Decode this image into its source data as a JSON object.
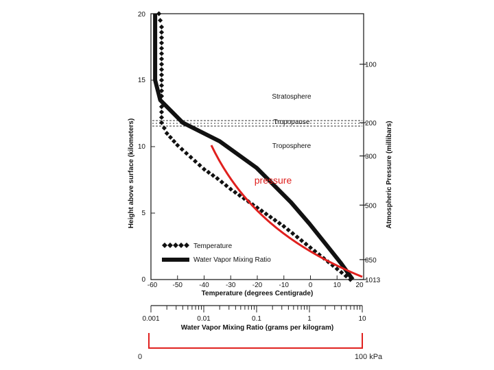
{
  "chart_data": {
    "type": "line",
    "title": "",
    "left_axis": {
      "label": "Height above surface (kilometers)",
      "range": [
        0,
        20
      ],
      "ticks": [
        "0",
        "5",
        "10",
        "15",
        "20"
      ]
    },
    "right_axis": {
      "label": "Atmospheric Pressure (millibars)",
      "tick_values": [
        1013,
        850,
        500,
        300,
        200,
        100
      ],
      "tick_heights_km": [
        0,
        1.5,
        5.6,
        9.3,
        11.8,
        16.2
      ],
      "ticks": [
        "1013",
        "850",
        "500",
        "300",
        "200",
        "100"
      ]
    },
    "temp_axis": {
      "label": "Temperature (degrees Centigrade)",
      "range": [
        -60,
        20
      ],
      "ticks": [
        "-60",
        "-50",
        "-40",
        "-30",
        "-20",
        "-10",
        "0",
        "10",
        "20"
      ]
    },
    "mixing_axis": {
      "label": "Water Vapor Mixing Ratio (grams per kilogram)",
      "range": [
        0.001,
        10
      ],
      "scale": "log",
      "ticks": [
        "0.001",
        "0.01",
        "0.1",
        "1",
        "10"
      ]
    },
    "layers": {
      "stratosphere": "Stratosphere",
      "tropopause": "Tropopause",
      "troposphere": "Troposphere",
      "tropopause_km": 11.8
    },
    "legend": {
      "temperature": "Temperature",
      "mixing": "Water Vapor Mixing Ratio"
    },
    "series": [
      {
        "name": "Temperature",
        "axis": "temperature",
        "points": [
          [
            15,
            0
          ],
          [
            10,
            0.8
          ],
          [
            5,
            1.6
          ],
          [
            0,
            2.4
          ],
          [
            -5,
            3.2
          ],
          [
            -10,
            4.0
          ],
          [
            -15,
            4.7
          ],
          [
            -20,
            5.4
          ],
          [
            -25,
            6.1
          ],
          [
            -30,
            6.8
          ],
          [
            -35,
            7.6
          ],
          [
            -40,
            8.3
          ],
          [
            -45,
            9.2
          ],
          [
            -50,
            10.1
          ],
          [
            -54,
            11.0
          ],
          [
            -56,
            11.8
          ],
          [
            -56,
            13
          ],
          [
            -56,
            15
          ],
          [
            -56,
            17
          ],
          [
            -56,
            19
          ],
          [
            -57,
            20
          ]
        ]
      },
      {
        "name": "Water Vapor Mixing Ratio",
        "axis": "mixing",
        "points": [
          [
            6.6,
            0
          ],
          [
            4.0,
            1.2
          ],
          [
            2.2,
            2.5
          ],
          [
            1.0,
            4.2
          ],
          [
            0.45,
            5.8
          ],
          [
            0.1,
            8.4
          ],
          [
            0.02,
            10.4
          ],
          [
            0.004,
            11.8
          ],
          [
            0.0015,
            13.5
          ],
          [
            0.0012,
            15.0
          ],
          [
            0.0012,
            16.2
          ],
          [
            0.0012,
            18
          ],
          [
            0.0012,
            20
          ]
        ]
      }
    ]
  },
  "overlay": {
    "label": "pressure",
    "scale_min": "0",
    "scale_max": "100 kPa",
    "color": "#e0201e"
  }
}
